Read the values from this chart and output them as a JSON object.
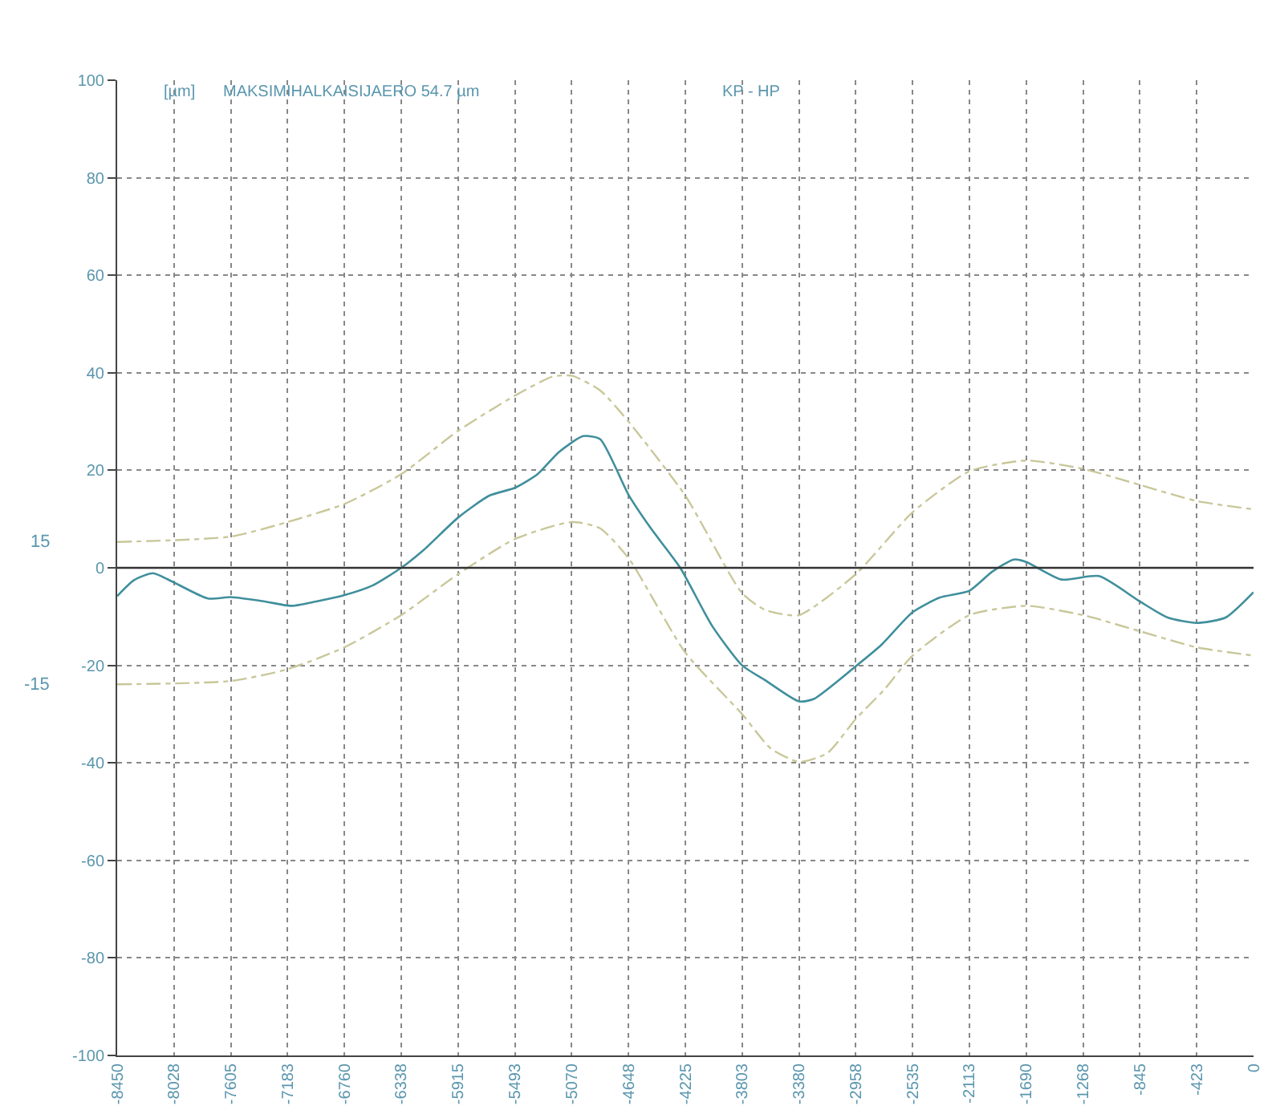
{
  "chart_data": {
    "type": "line",
    "title": "MAKSIMIHALKAISIJAERO 54.7 µm",
    "subtitle": "KP - HP",
    "ylabel": "[µm]",
    "series": [
      {
        "color": "#3f8f9c",
        "line_style": "solid",
        "x": [
          -8450,
          -8323,
          -8184,
          -8028,
          -7774,
          -7605,
          -7352,
          -7157,
          -6971,
          -6760,
          -6549,
          -6338,
          -6169,
          -5915,
          -5683,
          -5493,
          -5324,
          -5167,
          -4986,
          -4859,
          -4648,
          -4479,
          -4263,
          -4026,
          -3803,
          -3634,
          -3380,
          -3270,
          -2958,
          -2767,
          -2535,
          -2332,
          -2113,
          -1944,
          -1783,
          -1690,
          -1428,
          -1149,
          -845,
          -638,
          -423,
          -208,
          0
        ],
        "values": [
          -5.8,
          -2.5,
          -1.1,
          -3,
          -6.3,
          -6,
          -6.9,
          -7.8,
          -6.9,
          -5.6,
          -3.6,
          0,
          3.7,
          10.3,
          14.8,
          16.4,
          19.2,
          23.7,
          27,
          26.4,
          15,
          8,
          0,
          -11.9,
          -20,
          -23,
          -27.4,
          -26.9,
          -20.2,
          -15.8,
          -9.1,
          -6.1,
          -4.7,
          -0.8,
          1.7,
          1.2,
          -2.4,
          -1.7,
          -6.9,
          -10.2,
          -11.3,
          -10.2,
          -5
        ]
      },
      {
        "color": "#c9c79a",
        "line_style": "dashed",
        "x": [
          -8450,
          -7605,
          -7183,
          -6760,
          -6338,
          -5915,
          -5493,
          -5214,
          -5070,
          -4859,
          -4648,
          -4225,
          -3803,
          -3634,
          -3380,
          -2958,
          -2535,
          -2113,
          -1690,
          -1268,
          -845,
          -423,
          0
        ],
        "values": [
          5.3,
          6.4,
          9.4,
          13.1,
          19.2,
          28.1,
          35.3,
          39.2,
          39.4,
          36.4,
          30,
          14.8,
          -5.2,
          -8.6,
          -9.7,
          -1.3,
          11.4,
          19.8,
          22,
          20.3,
          17,
          13.7,
          12
        ]
      },
      {
        "color": "#c9c79a",
        "line_style": "dashed",
        "x": [
          -8450,
          -7605,
          -7183,
          -6760,
          -6338,
          -5915,
          -5493,
          -5070,
          -4859,
          -4648,
          -4225,
          -3803,
          -3592,
          -3380,
          -3169,
          -2958,
          -2747,
          -2535,
          -2113,
          -1690,
          -1268,
          -845,
          -423,
          0
        ],
        "values": [
          -23.9,
          -23.2,
          -20.8,
          -16.3,
          -9.7,
          -1.3,
          5.9,
          9.4,
          8.1,
          2,
          -17.4,
          -30,
          -37,
          -39.8,
          -38,
          -31,
          -25,
          -18,
          -9.7,
          -7.8,
          -9.7,
          -13,
          -16.3,
          -18
        ]
      }
    ],
    "xlim": [
      -8450,
      0
    ],
    "xticks": [
      -8450,
      -8028,
      -7605,
      -7183,
      -6760,
      -6338,
      -5915,
      -5493,
      -5070,
      -4648,
      -4225,
      -3803,
      -3380,
      -2958,
      -2535,
      -2113,
      -1690,
      -1268,
      -845,
      -423,
      0
    ],
    "ylim": [
      -100,
      100
    ],
    "yticks": [
      -100,
      -80,
      -60,
      -40,
      -20,
      0,
      20,
      40,
      60,
      80,
      100
    ],
    "grid": true,
    "marker": "none",
    "ref_lines": [
      {
        "axis": "y",
        "value": 0,
        "color": "#333333",
        "line_style": "solid"
      }
    ],
    "annotations": [
      "15",
      "-15"
    ]
  }
}
